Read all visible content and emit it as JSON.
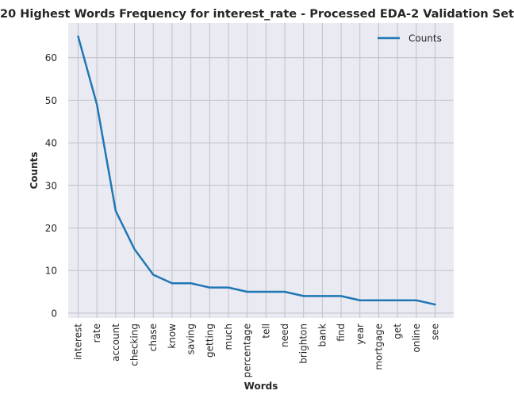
{
  "chart_data": {
    "type": "line",
    "title": "20 Highest Words Frequency for interest_rate - Processed EDA-2 Validation Set",
    "xlabel": "Words",
    "ylabel": "Counts",
    "categories": [
      "interest",
      "rate",
      "account",
      "checking",
      "chase",
      "know",
      "saving",
      "getting",
      "much",
      "percentage",
      "tell",
      "need",
      "brighton",
      "bank",
      "find",
      "year",
      "mortgage",
      "get",
      "online",
      "see"
    ],
    "series": [
      {
        "name": "Counts",
        "values": [
          65,
          49,
          24,
          15,
          9,
          7,
          7,
          6,
          6,
          5,
          5,
          5,
          4,
          4,
          4,
          3,
          3,
          3,
          3,
          2
        ],
        "color": "#1f77b4"
      }
    ],
    "ylim": [
      -1.15,
      68.15
    ],
    "yticks": [
      0,
      10,
      20,
      30,
      40,
      50,
      60
    ],
    "grid": true,
    "legend_position": "top-right",
    "background_color": "#eaeaf2",
    "grid_color": "#c0c0c8"
  }
}
